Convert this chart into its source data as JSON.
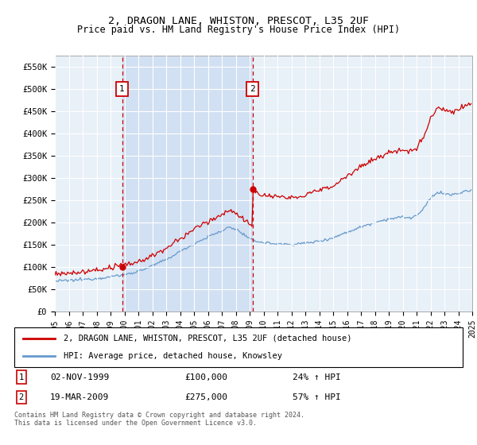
{
  "title": "2, DRAGON LANE, WHISTON, PRESCOT, L35 2UF",
  "subtitle": "Price paid vs. HM Land Registry's House Price Index (HPI)",
  "red_line_label": "2, DRAGON LANE, WHISTON, PRESCOT, L35 2UF (detached house)",
  "blue_line_label": "HPI: Average price, detached house, Knowsley",
  "sale1_date": "02-NOV-1999",
  "sale1_price": 100000,
  "sale1_hpi": "24% ↑ HPI",
  "sale2_date": "19-MAR-2009",
  "sale2_price": 275000,
  "sale2_hpi": "57% ↑ HPI",
  "sale1_year": 1999.83,
  "sale2_year": 2009.21,
  "ylim_min": 0,
  "ylim_max": 575000,
  "xlim_min": 1995,
  "xlim_max": 2025,
  "yticks": [
    0,
    50000,
    100000,
    150000,
    200000,
    250000,
    300000,
    350000,
    400000,
    450000,
    500000,
    550000
  ],
  "ytick_labels": [
    "£0",
    "£50K",
    "£100K",
    "£150K",
    "£200K",
    "£250K",
    "£300K",
    "£350K",
    "£400K",
    "£450K",
    "£500K",
    "£550K"
  ],
  "xticks": [
    1995,
    1996,
    1997,
    1998,
    1999,
    2000,
    2001,
    2002,
    2003,
    2004,
    2005,
    2006,
    2007,
    2008,
    2009,
    2010,
    2011,
    2012,
    2013,
    2014,
    2015,
    2016,
    2017,
    2018,
    2019,
    2020,
    2021,
    2022,
    2023,
    2024,
    2025
  ],
  "background_color": "#e8f0f8",
  "shade_color": "#c8daf0",
  "grid_color": "#ffffff",
  "red_color": "#cc0000",
  "blue_color": "#6699cc",
  "footnote": "Contains HM Land Registry data © Crown copyright and database right 2024.\nThis data is licensed under the Open Government Licence v3.0."
}
